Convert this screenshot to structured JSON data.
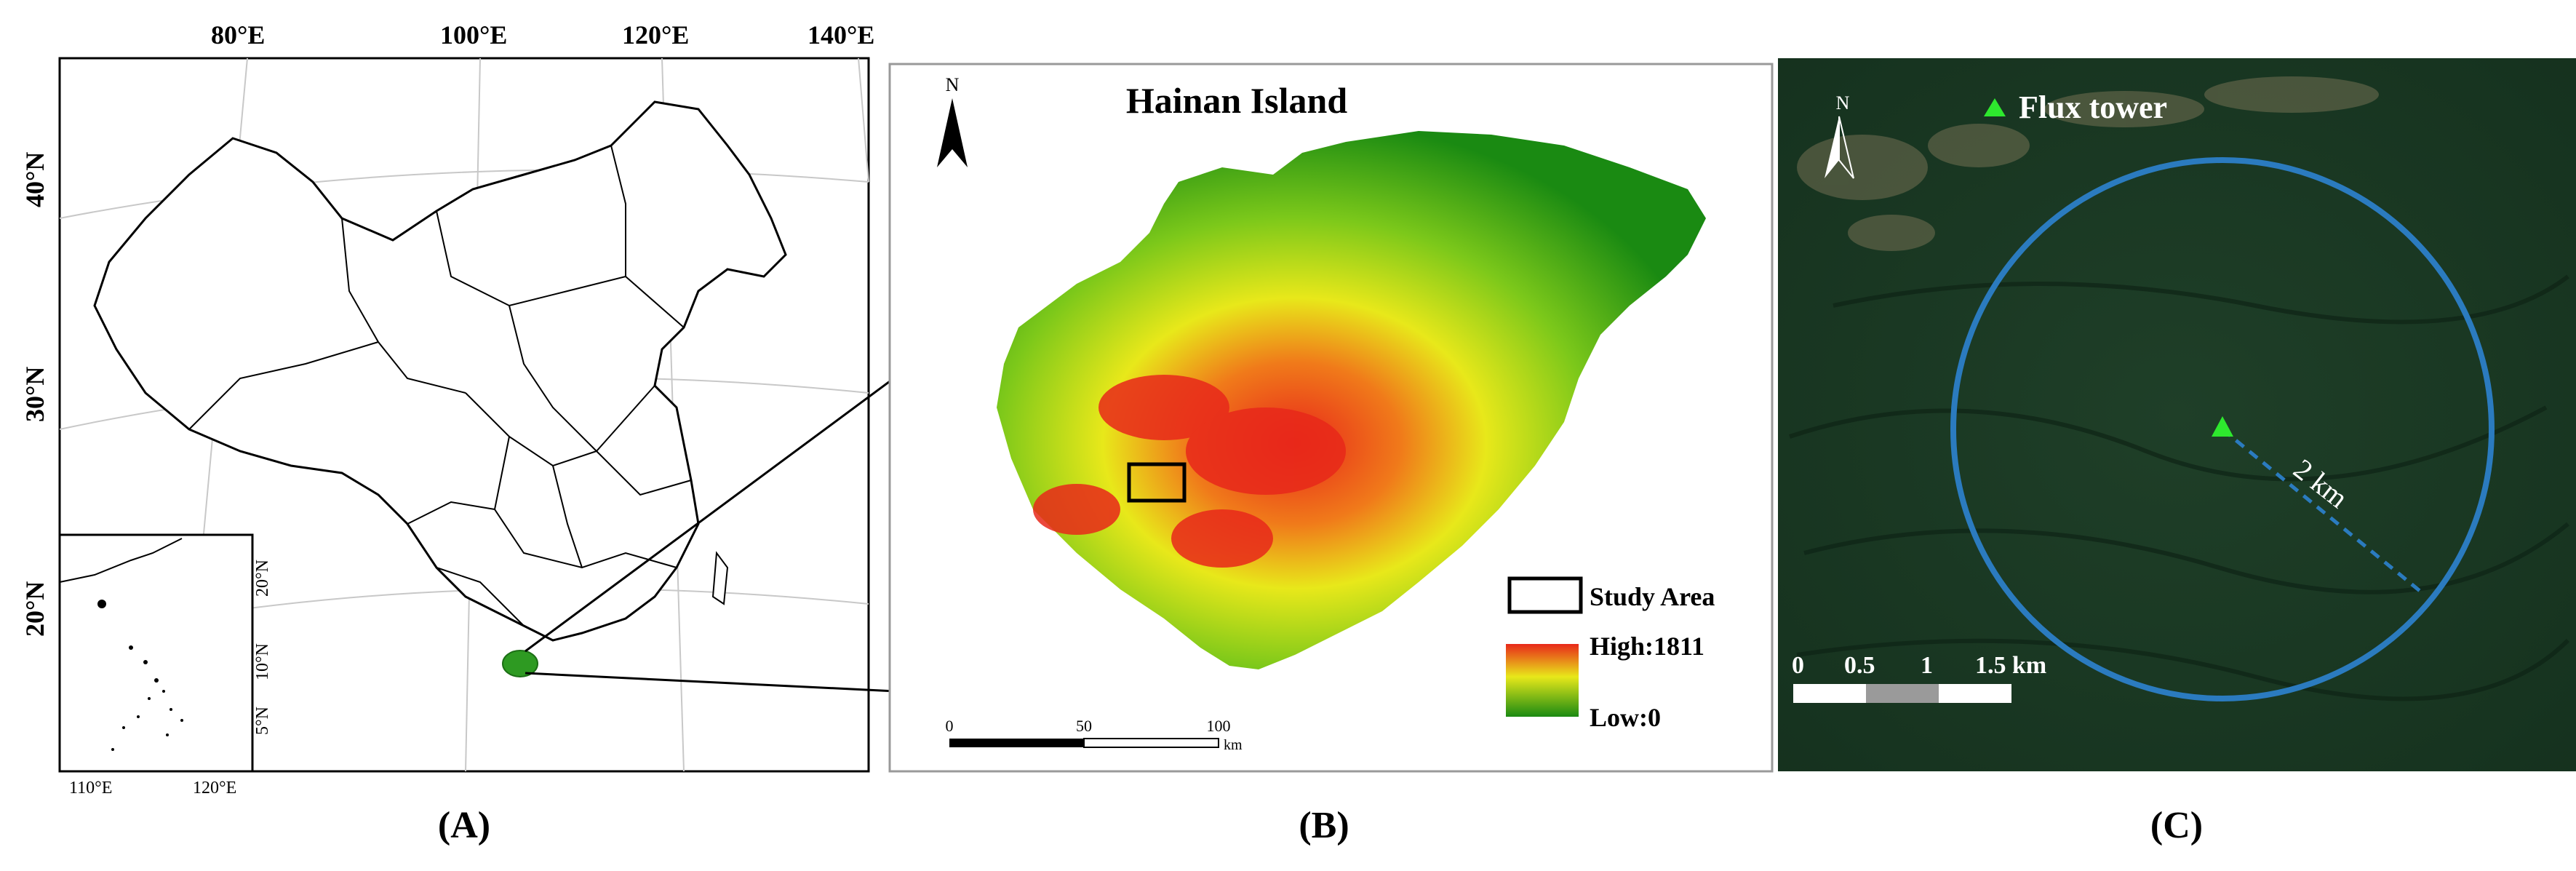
{
  "panel_a": {
    "caption": "(A)",
    "lon_labels": [
      "80°E",
      "100°E",
      "120°E",
      "140°E"
    ],
    "lat_labels": [
      "40°N",
      "30°N",
      "20°N"
    ],
    "inset": {
      "lat_labels": [
        "20°N",
        "10°N",
        "5°N"
      ],
      "lon_labels": [
        "110°E",
        "120°E"
      ]
    }
  },
  "panel_b": {
    "caption": "(B)",
    "title": "Hainan Island",
    "north_label": "N",
    "legend": {
      "study_area": "Study Area",
      "high": "High:1811",
      "low": "Low:0"
    },
    "scalebar": {
      "ticks": [
        "0",
        "50",
        "100"
      ],
      "unit": "km"
    },
    "colors": {
      "low": "#1a8a12",
      "mid": "#e8e81a",
      "high": "#e8281a"
    }
  },
  "panel_c": {
    "caption": "(C)",
    "north_label": "N",
    "legend_label": "Flux tower",
    "radius_label": "2 km",
    "scalebar": {
      "ticks": [
        "0",
        "0.5",
        "1",
        "1.5 km"
      ]
    },
    "colors": {
      "circle": "#2b7bbf",
      "tower": "#2ee82e"
    }
  }
}
